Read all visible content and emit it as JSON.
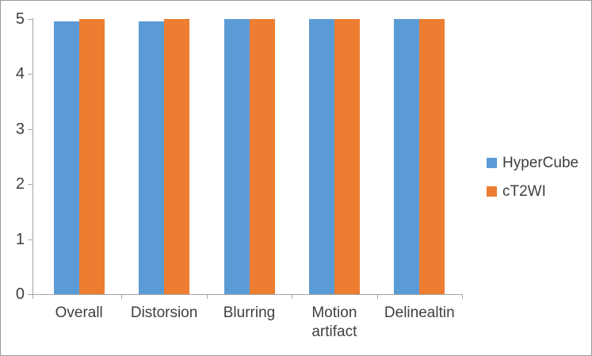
{
  "chart_data": {
    "type": "bar",
    "title": "",
    "xlabel": "",
    "ylabel": "",
    "categories": [
      "Overall",
      "Distorsion",
      "Blurring",
      "Motion artifact",
      "Delinealtin"
    ],
    "series": [
      {
        "name": "HyperCube",
        "color": "#5b9bd5",
        "values": [
          4.95,
          4.95,
          5,
          5,
          5
        ]
      },
      {
        "name": "cT2WI",
        "color": "#ed7d31",
        "values": [
          5,
          5,
          5,
          5,
          5
        ]
      }
    ],
    "ylim": [
      0,
      5
    ],
    "yticks": [
      0,
      1,
      2,
      3,
      4,
      5
    ],
    "grid": false,
    "legend_position": "right",
    "axis_color": "#a6a6a6",
    "text_color": "#3f3f3f",
    "border_color": "#999999",
    "background": "#ffffff"
  }
}
